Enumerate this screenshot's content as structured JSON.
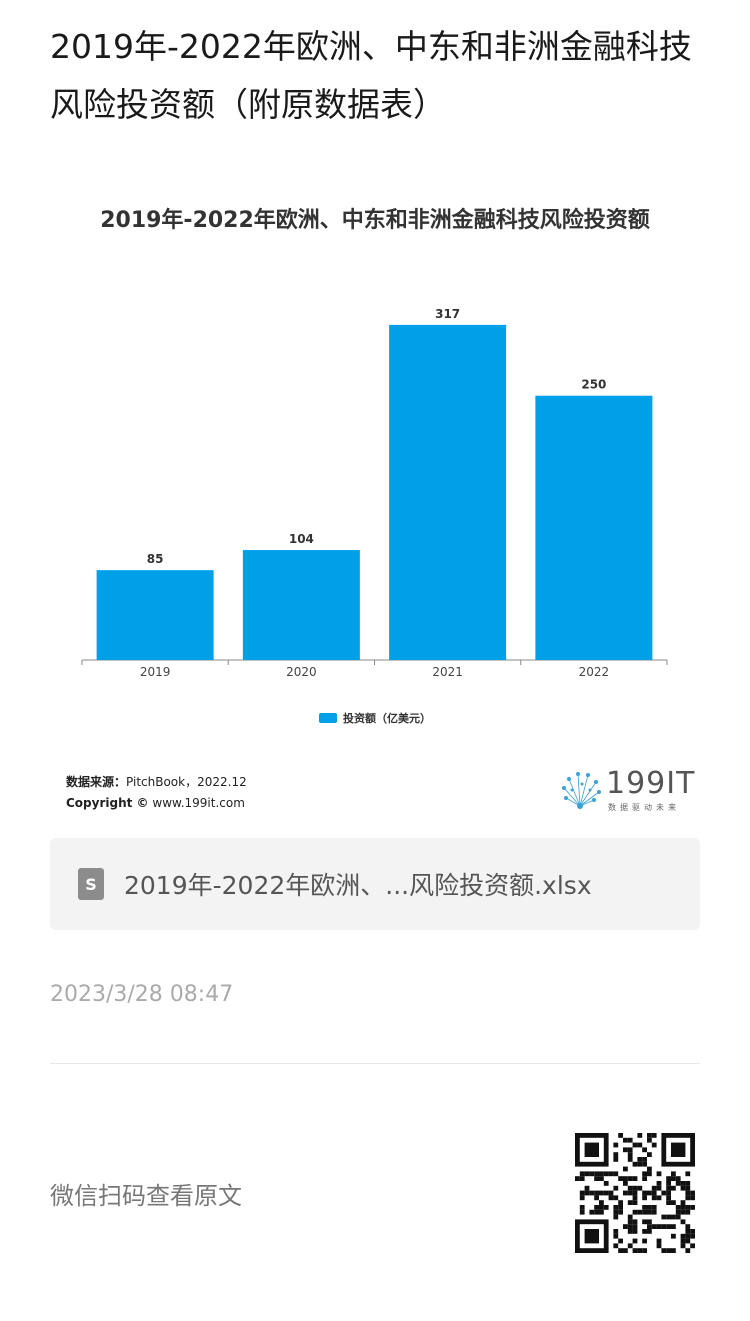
{
  "article": {
    "title": "2019年-2022年欧洲、中东和非洲金融科技风险投资额（附原数据表）"
  },
  "chart_data": {
    "type": "bar",
    "title": "2019年-2022年欧洲、中东和非洲金融科技风险投资额",
    "categories": [
      "2019",
      "2020",
      "2021",
      "2022"
    ],
    "series": [
      {
        "name": "投资额（亿美元）",
        "values": [
          85,
          104,
          317,
          250
        ]
      }
    ],
    "ylim": [
      0,
      350
    ],
    "grid": false,
    "legend": "bottom",
    "bar_color": "#00a0e9"
  },
  "source": {
    "label": "数据来源：",
    "text": "PitchBook，2022.12",
    "copyright_label": "Copyright ©",
    "copyright_text": "www.199it.com"
  },
  "logo": {
    "name": "199IT",
    "tagline": "数据驱动未来"
  },
  "attachment": {
    "file_name": "2019年-2022年欧洲、...风险投资额.xlsx",
    "icon_glyph": "S",
    "icon": "spreadsheet-file-icon"
  },
  "timestamp": "2023/3/28 08:47",
  "footer": {
    "qr_label": "微信扫码查看原文",
    "qr_icon": "qr-code-icon"
  }
}
